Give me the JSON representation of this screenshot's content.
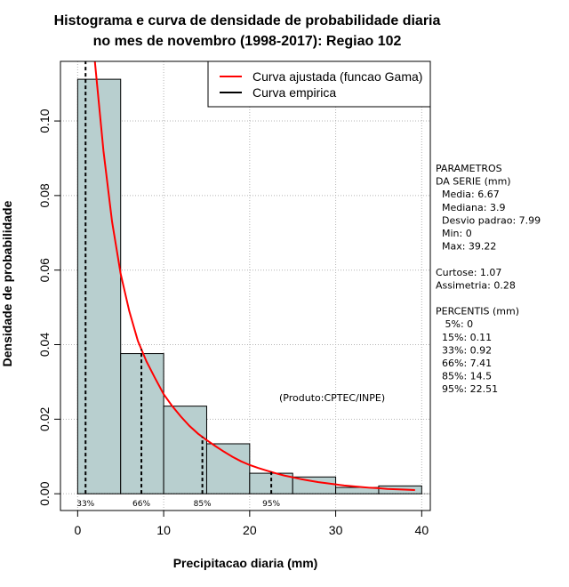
{
  "chart_data": {
    "type": "bar",
    "title_lines": [
      "Histograma e curva de densidade de probabilidade diaria",
      "no mes de novembro (1998-2017): Regiao 102"
    ],
    "xlabel": "Precipitacao diaria (mm)",
    "ylabel": "Densidade de probabilidade",
    "xlim": [
      -2,
      41
    ],
    "ylim": [
      -0.0045,
      0.116
    ],
    "x_ticks": [
      0,
      10,
      20,
      30,
      40
    ],
    "x_tick_labels": [
      "0",
      "10",
      "20",
      "30",
      "40"
    ],
    "y_ticks": [
      0.0,
      0.02,
      0.04,
      0.06,
      0.08,
      0.1
    ],
    "y_tick_labels": [
      "0.00",
      "0.02",
      "0.04",
      "0.06",
      "0.08",
      "0.10"
    ],
    "grid": true,
    "bins": [
      {
        "start": 0,
        "end": 5,
        "density": 0.1112
      },
      {
        "start": 5,
        "end": 10,
        "density": 0.0376
      },
      {
        "start": 10,
        "end": 15,
        "density": 0.0235
      },
      {
        "start": 15,
        "end": 20,
        "density": 0.0134
      },
      {
        "start": 20,
        "end": 25,
        "density": 0.0055
      },
      {
        "start": 25,
        "end": 30,
        "density": 0.0045
      },
      {
        "start": 30,
        "end": 35,
        "density": 0.0017
      },
      {
        "start": 35,
        "end": 40,
        "density": 0.0021
      }
    ],
    "bar_color": "#b8cfcf",
    "fitted_curve": {
      "name": "Curva ajustada (funcao Gama)",
      "color": "#ff0000",
      "x": [
        2.0,
        3,
        4,
        5,
        6,
        7,
        8,
        9,
        10,
        11,
        12,
        13,
        14,
        15,
        16,
        17,
        18,
        19,
        20,
        21,
        22,
        23,
        24,
        25,
        26,
        27,
        28,
        29,
        30,
        31,
        32,
        33,
        34,
        35,
        36,
        37,
        38,
        39.22
      ],
      "y": [
        0.116,
        0.092,
        0.073,
        0.059,
        0.049,
        0.041,
        0.0355,
        0.031,
        0.0267,
        0.0235,
        0.0207,
        0.0182,
        0.0161,
        0.0144,
        0.0128,
        0.0113,
        0.0099,
        0.0087,
        0.0077,
        0.0069,
        0.0062,
        0.0055,
        0.0049,
        0.0044,
        0.0039,
        0.0035,
        0.0031,
        0.0028,
        0.0025,
        0.0022,
        0.002,
        0.0018,
        0.0016,
        0.0015,
        0.0013,
        0.0012,
        0.0011,
        0.001
      ]
    },
    "empirical_curve": {
      "name": "Curva empirica",
      "color": "#000000"
    },
    "legend": {
      "position": "top-right",
      "entries": [
        {
          "label": "Curva ajustada (funcao Gama)",
          "color": "#ff0000"
        },
        {
          "label": "Curva empirica",
          "color": "#000000"
        }
      ]
    },
    "percentile_lines": [
      {
        "label": "33%",
        "x": 0.92
      },
      {
        "label": "66%",
        "x": 7.41
      },
      {
        "label": "85%",
        "x": 14.5
      },
      {
        "label": "95%",
        "x": 22.51
      }
    ],
    "annotation": "(Produto:CPTEC/INPE)"
  },
  "side_panel": {
    "lines": [
      "PARAMETROS",
      "DA SERIE (mm)",
      "  Media: 6.67",
      "  Mediana: 3.9",
      "  Desvio padrao: 7.99",
      "  Min: 0",
      "  Max: 39.22",
      "",
      "Curtose: 1.07",
      "Assimetria: 0.28",
      "",
      "PERCENTIS (mm)",
      "   5%: 0",
      "  15%: 0.11",
      "  33%: 0.92",
      "  66%: 7.41",
      "  85%: 14.5",
      "  95%: 22.51"
    ]
  }
}
